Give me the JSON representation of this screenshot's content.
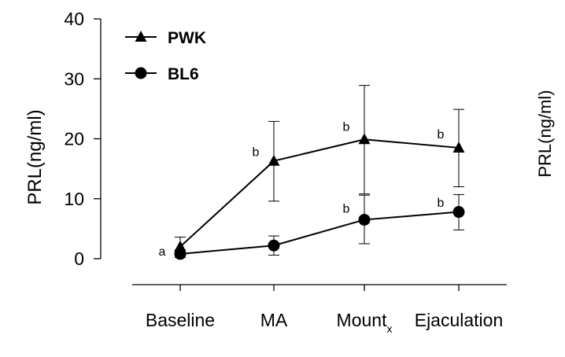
{
  "chart_data": {
    "type": "line",
    "title": "",
    "xlabel": "",
    "ylabel": "PRL(ng/ml)",
    "ylim": [
      0,
      40
    ],
    "yticks": [
      0,
      10,
      20,
      30,
      40
    ],
    "categories": [
      "Baseline",
      "MA",
      "Mount",
      "Ejaculation"
    ],
    "category_subscripts": [
      "",
      "",
      "x",
      ""
    ],
    "series": [
      {
        "name": "PWK",
        "marker": "triangle",
        "values": [
          2.0,
          16.3,
          19.9,
          18.5
        ],
        "err_upper": [
          3.6,
          22.9,
          28.9,
          24.9
        ],
        "err_lower": [
          0.5,
          9.6,
          10.8,
          12.0
        ]
      },
      {
        "name": "BL6",
        "marker": "circle",
        "values": [
          0.8,
          2.2,
          6.5,
          7.8
        ],
        "err_upper": [
          1.5,
          3.8,
          10.6,
          10.7
        ],
        "err_lower": [
          0.2,
          0.6,
          2.5,
          4.8
        ]
      }
    ],
    "annotations": [
      {
        "text": "a",
        "category": "Baseline",
        "y": 1.2
      },
      {
        "text": "b",
        "category": "MA",
        "y": 17.8
      },
      {
        "text": "b",
        "category": "Mount",
        "y": 22.0
      },
      {
        "text": "b",
        "category": "Ejaculation",
        "y": 20.7
      },
      {
        "text": "b",
        "category": "Mount",
        "y": 8.3
      },
      {
        "text": "b",
        "category": "Ejaculation",
        "y": 9.3
      }
    ],
    "legend_position": "top-left",
    "grid": false
  },
  "cut_off_label": "PRL(ng/ml)"
}
